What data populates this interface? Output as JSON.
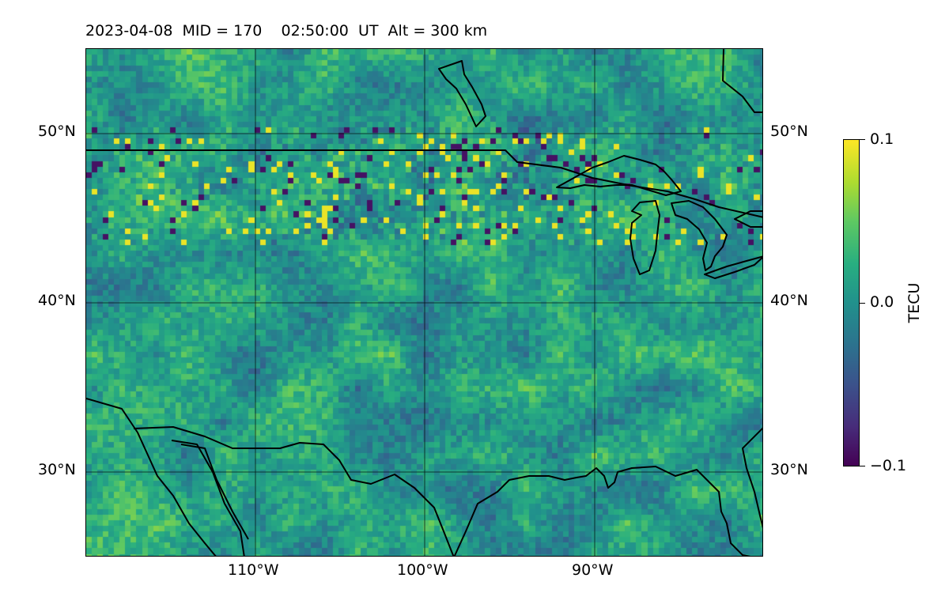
{
  "title": "2023-04-08  MID = 170    02:50:00  UT  Alt = 300 km",
  "map": {
    "lon_range": [
      -120,
      -80
    ],
    "lat_range": [
      25,
      55
    ],
    "lat_ticks": [
      {
        "value": 50,
        "label": "50°N"
      },
      {
        "value": 40,
        "label": "40°N"
      },
      {
        "value": 30,
        "label": "30°N"
      }
    ],
    "lon_ticks": [
      {
        "value": -110,
        "label": "110°W"
      },
      {
        "value": -100,
        "label": "100°W"
      },
      {
        "value": -90,
        "label": "90°W"
      }
    ],
    "colormap": "viridis",
    "grid": true
  },
  "colorbar": {
    "label": "TECU",
    "vmin": -0.1,
    "vmax": 0.1,
    "ticks": [
      {
        "value": 0.1,
        "label": "0.1"
      },
      {
        "value": 0.0,
        "label": "0.0"
      },
      {
        "value": -0.1,
        "label": "−0.1"
      }
    ]
  }
}
